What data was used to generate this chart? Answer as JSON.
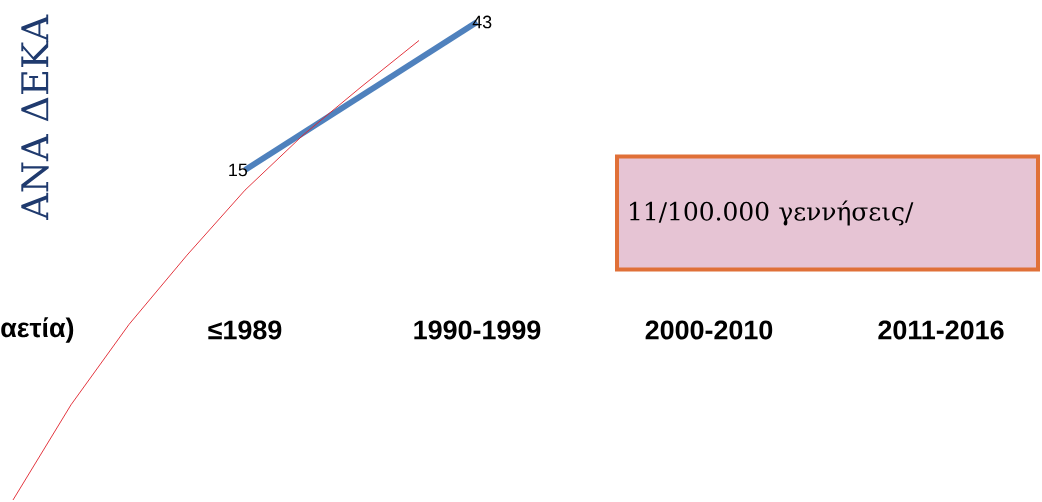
{
  "chart_data": {
    "type": "line",
    "ylabel": "ΑΝΑ ΔΕΚΑ",
    "xlabel": "αετία)",
    "categories": [
      null,
      null,
      null,
      null,
      "≤1989",
      null,
      null,
      null,
      "1990-1999",
      null,
      null,
      null,
      "2000-2010",
      null,
      null,
      null,
      "2011-2016"
    ],
    "tick_labels": "x",
    "marker": "none",
    "series": [
      {
        "color": "#4f81bd",
        "values": [
          null,
          null,
          null,
          null,
          15,
          null,
          null,
          null,
          43,
          null,
          null,
          null,
          null,
          null,
          null,
          null,
          null
        ],
        "value_labels": [
          null,
          null,
          null,
          null,
          "15",
          null,
          null,
          null,
          "43",
          null,
          null,
          null,
          null,
          null,
          null,
          null,
          null
        ]
      },
      {
        "color": "#e0202a",
        "values": [
          -47.4,
          -29.4,
          -14.2,
          -1.1,
          11.2,
          21.6,
          30.7,
          39.5,
          null,
          null,
          null,
          null,
          null,
          null,
          null,
          null,
          null
        ]
      }
    ],
    "annotations": [
      "11/100.000 γεννήσεις/"
    ]
  }
}
